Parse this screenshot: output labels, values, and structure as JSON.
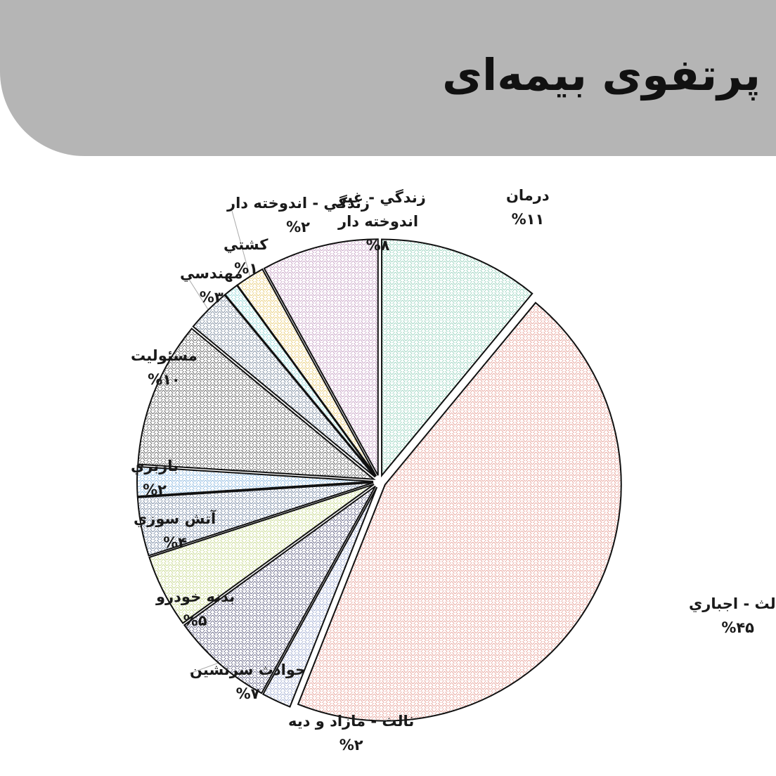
{
  "page": {
    "title": "پرتفوی بیمه‌ای"
  },
  "chart_data": {
    "type": "pie",
    "title": "",
    "start_angle_deg": 0,
    "direction": "clockwise",
    "exploded": true,
    "slices": [
      {
        "name": "درمان",
        "value": 11,
        "label_lines": [
          "درمان"
        ],
        "value_label": "%۱۱",
        "color": "#7fc6ad"
      },
      {
        "name": "ثالث - اجباري",
        "value": 45,
        "label_lines": [
          "ثالث - اجباري"
        ],
        "value_label": "%۴۵",
        "color": "#e08a80"
      },
      {
        "name": "ثالث - مازاد و ديه",
        "value": 2,
        "label_lines": [
          "ثالث - مازاد و ديه"
        ],
        "value_label": "%۲",
        "color": "#8c9bc7"
      },
      {
        "name": "حوادث سرنشين",
        "value": 7,
        "label_lines": [
          "حوادث سرنشين"
        ],
        "value_label": "%۷",
        "color": "#3f3f66"
      },
      {
        "name": "بدنه خودرو",
        "value": 5,
        "label_lines": [
          "بدنه خودرو"
        ],
        "value_label": "%۵",
        "color": "#b9cf72"
      },
      {
        "name": "آتش سوزي",
        "value": 4,
        "label_lines": [
          "آتش سوزي"
        ],
        "value_label": "%۴",
        "color": "#556a8a"
      },
      {
        "name": "باربري",
        "value": 2,
        "label_lines": [
          "باربري"
        ],
        "value_label": "%۲",
        "color": "#6fa6d8"
      },
      {
        "name": "مسئوليت",
        "value": 10,
        "label_lines": [
          "مسئوليت"
        ],
        "value_label": "%۱۰",
        "color": "#3b3b3b"
      },
      {
        "name": "مهندسي",
        "value": 3,
        "label_lines": [
          "مهندسي"
        ],
        "value_label": "%۳",
        "color": "#5c6f86"
      },
      {
        "name": "كشتي",
        "value": 1,
        "label_lines": [
          "كشتي"
        ],
        "value_label": "%۱",
        "color": "#7fd0cf"
      },
      {
        "name": "زندگي - اندوخته دار",
        "value": 2,
        "label_lines": [
          "زندگي - اندوخته دار"
        ],
        "value_label": "%۲",
        "color": "#e3c15a"
      },
      {
        "name": "زندگي - غير اندوخته دار",
        "value": 8,
        "label_lines": [
          "زندگي - غير",
          "اندوخته دار"
        ],
        "value_label": "%۸",
        "color": "#b88ab5"
      }
    ]
  }
}
